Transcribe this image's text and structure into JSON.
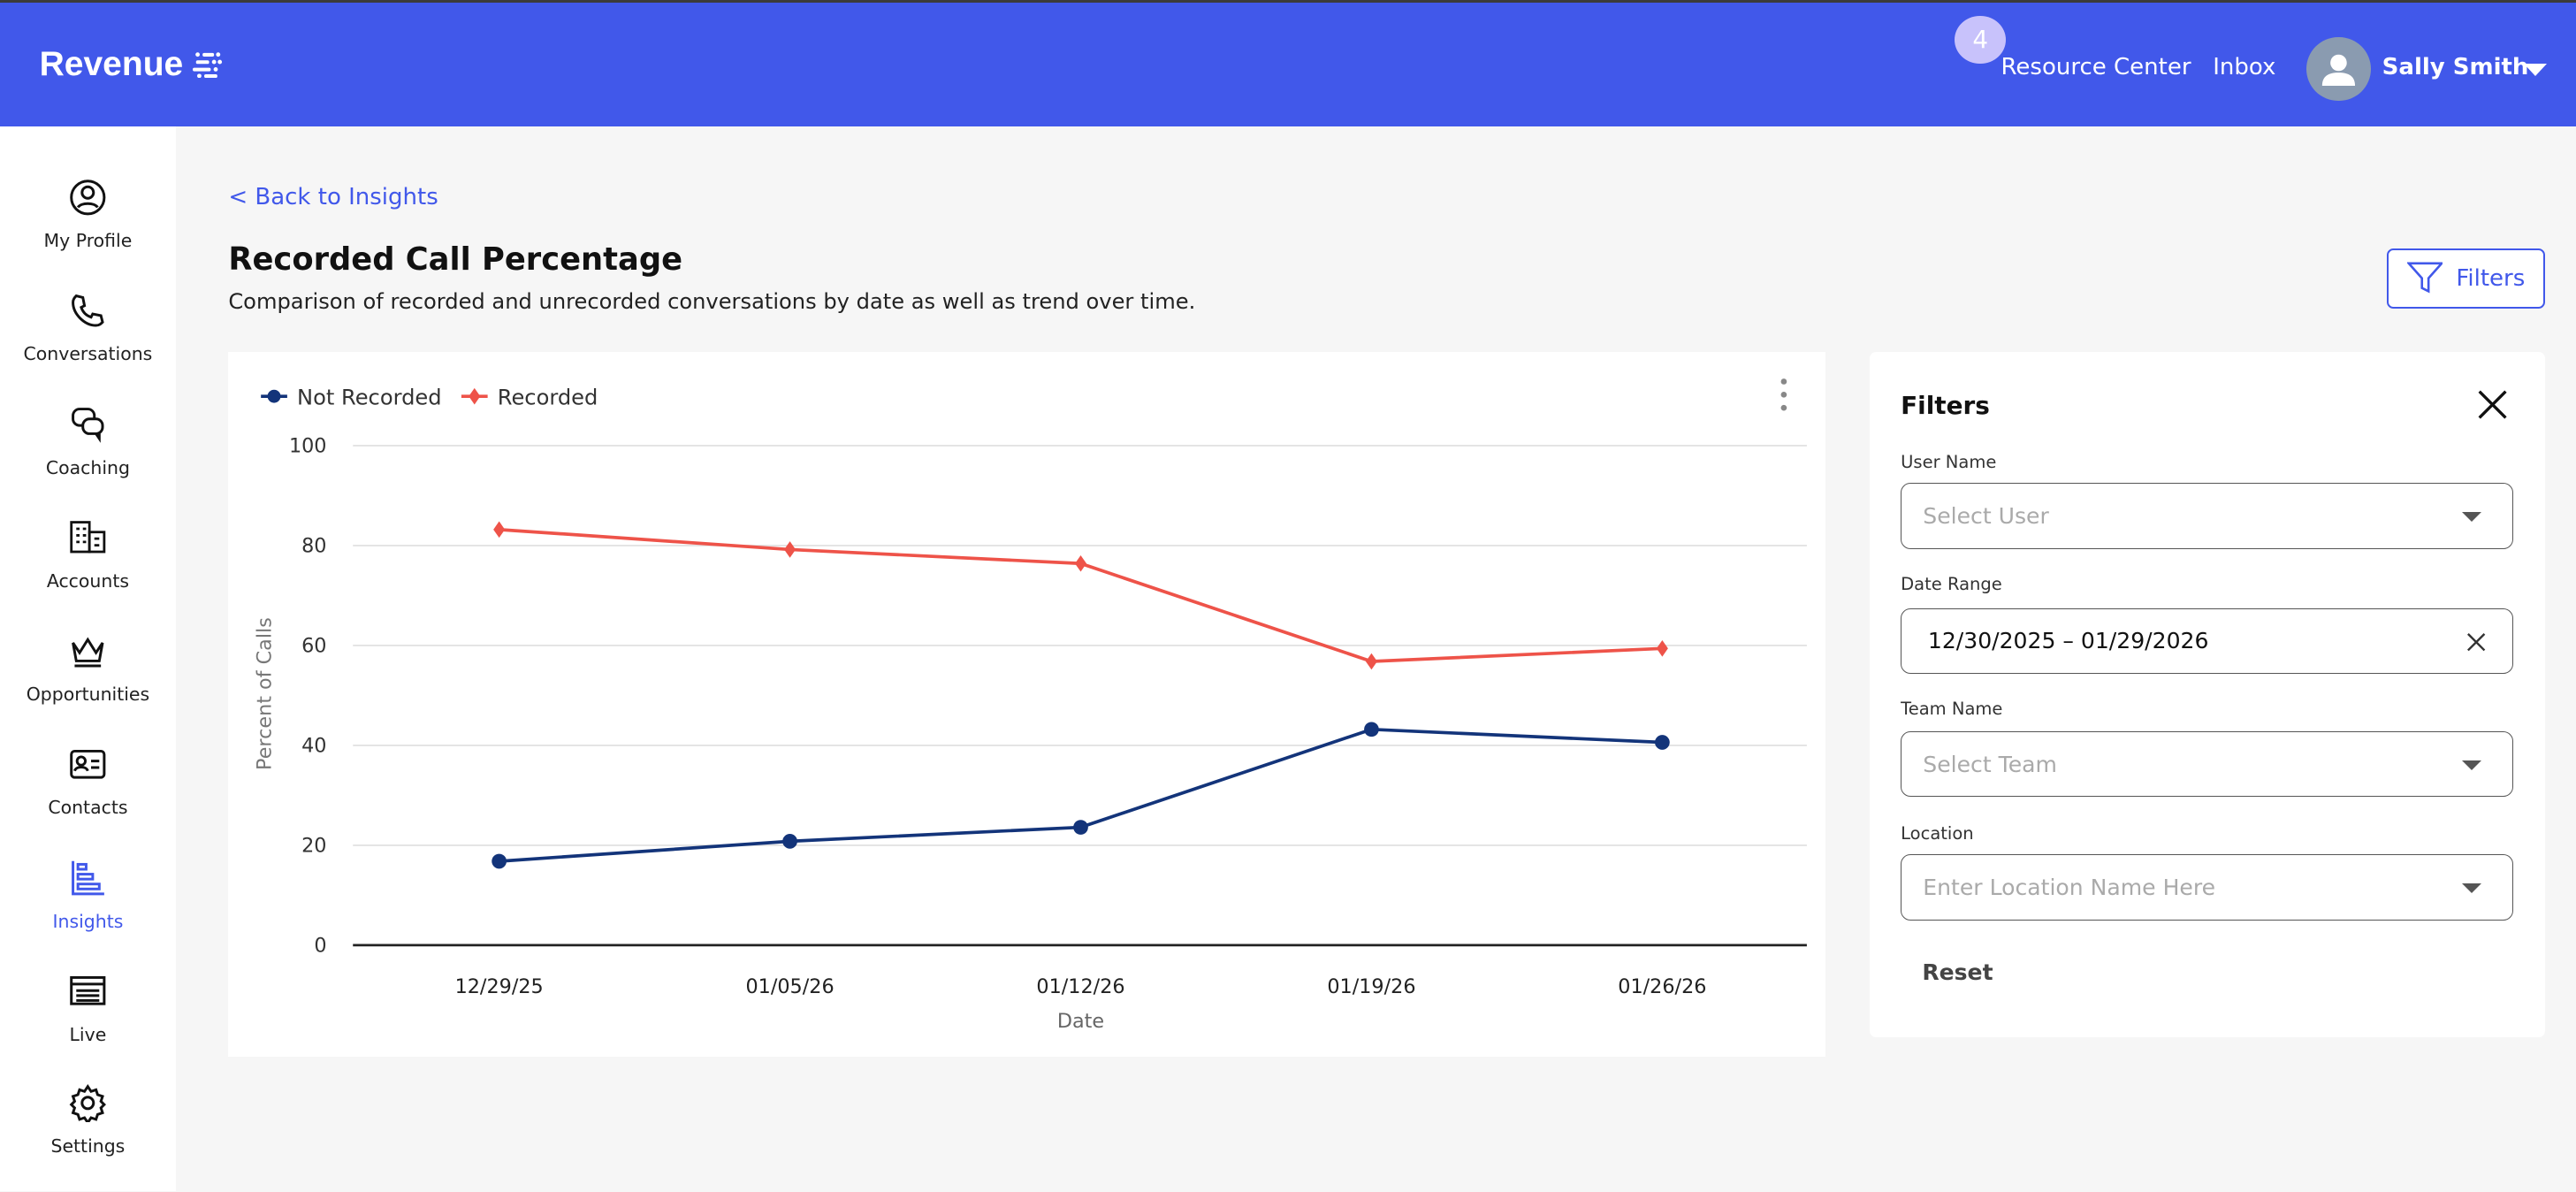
{
  "header": {
    "logo": "Revenue",
    "badge_count": "4",
    "resource_center": "Resource Center",
    "inbox": "Inbox",
    "user_name": "Sally Smith",
    "brand_color": "#4158ea"
  },
  "sidebar": {
    "items": [
      {
        "label": "My Profile",
        "icon": "user-circle-icon"
      },
      {
        "label": "Conversations",
        "icon": "phone-icon"
      },
      {
        "label": "Coaching",
        "icon": "chat-bubbles-icon"
      },
      {
        "label": "Accounts",
        "icon": "building-icon"
      },
      {
        "label": "Opportunities",
        "icon": "crown-icon"
      },
      {
        "label": "Contacts",
        "icon": "contact-card-icon"
      },
      {
        "label": "Insights",
        "icon": "bar-chart-icon",
        "active": true
      },
      {
        "label": "Live",
        "icon": "live-list-icon"
      },
      {
        "label": "Settings",
        "icon": "gear-icon"
      }
    ]
  },
  "page": {
    "back_link": "< Back to Insights",
    "title": "Recorded Call Percentage",
    "subtitle": "Comparison of recorded and unrecorded conversations by date as well as trend over time.",
    "filters_button": "Filters"
  },
  "filters": {
    "title": "Filters",
    "user_name_label": "User Name",
    "user_name_placeholder": "Select User",
    "date_range_label": "Date Range",
    "date_range_value": "12/30/2025 – 01/29/2026",
    "team_name_label": "Team Name",
    "team_name_placeholder": "Select Team",
    "location_label": "Location",
    "location_placeholder": "Enter Location Name Here",
    "reset": "Reset"
  },
  "chart_data": {
    "type": "line",
    "xlabel": "Date",
    "ylabel": "Percent of Calls",
    "categories": [
      "12/29/25",
      "01/05/26",
      "01/12/26",
      "01/19/26",
      "01/26/26"
    ],
    "ylim": [
      0,
      100
    ],
    "yticks": [
      0,
      20,
      40,
      60,
      80,
      100
    ],
    "grid": true,
    "legend": "top-left",
    "series": [
      {
        "name": "Not Recorded",
        "color": "#13347a",
        "marker": "circle",
        "values": [
          16.8,
          20.8,
          23.6,
          43.2,
          40.6
        ]
      },
      {
        "name": "Recorded",
        "color": "#ee5349",
        "marker": "diamond",
        "values": [
          83.2,
          79.2,
          76.4,
          56.8,
          59.4
        ]
      }
    ]
  }
}
